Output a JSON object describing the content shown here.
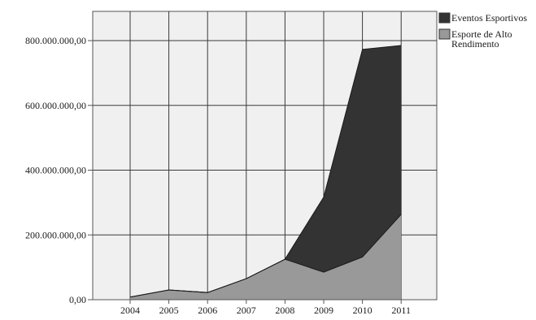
{
  "chart_data": {
    "type": "area",
    "stacked": true,
    "categories": [
      "2004",
      "2005",
      "2006",
      "2007",
      "2008",
      "2009",
      "2010",
      "2011"
    ],
    "series": [
      {
        "name": "Esporte de Alto Rendimento",
        "color": "#999999",
        "values": [
          8000000,
          30000000,
          22000000,
          65000000,
          125000000,
          85000000,
          132000000,
          263000000
        ]
      },
      {
        "name": "Eventos Esportivos",
        "color": "#333333",
        "values": [
          0,
          0,
          0,
          0,
          0,
          232000000,
          641000000,
          522000000
        ]
      }
    ],
    "yticks": [
      "0,00",
      "200.000.000,00",
      "400.000.000,00",
      "600.000.000,00",
      "800.000.000,00"
    ],
    "ylim": [
      0,
      900000000
    ],
    "grid": true,
    "plot_background": "#f0f0f0",
    "legend_position": "top-right",
    "legend_order": [
      "Eventos Esportivos",
      "Esporte de Alto Rendimento"
    ]
  }
}
